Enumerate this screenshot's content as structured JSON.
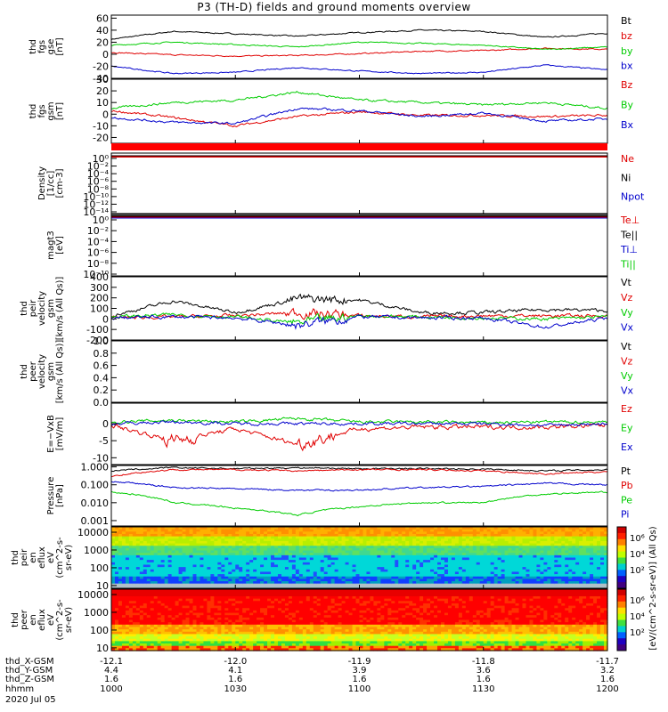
{
  "title": "P3 (TH-D) fields and ground moments overview",
  "colors": {
    "black": "#000000",
    "red": "#e00000",
    "green": "#00cc00",
    "blue": "#0000cc"
  },
  "chart_data": [
    {
      "type": "line",
      "id": "p1",
      "ylabel": [
        "thd",
        "fgs",
        "gse",
        "[nT]"
      ],
      "ylim": [
        -40,
        65
      ],
      "yticks": [
        -40,
        -20,
        0,
        20,
        40,
        60
      ],
      "series": [
        {
          "name": "Bt",
          "color": "black",
          "x": [
            10.0,
            10.25,
            10.5,
            10.75,
            11.0,
            11.25,
            11.5,
            11.75,
            12.0
          ],
          "y": [
            25,
            38,
            34,
            30,
            36,
            40,
            38,
            28,
            35
          ]
        },
        {
          "name": "bz",
          "color": "red",
          "x": [
            10.0,
            10.25,
            10.5,
            10.75,
            11.0,
            11.25,
            11.5,
            11.75,
            12.0
          ],
          "y": [
            3,
            -1,
            -3,
            -2,
            1,
            5,
            6,
            10,
            8
          ]
        },
        {
          "name": "by",
          "color": "green",
          "x": [
            10.0,
            10.25,
            10.5,
            10.75,
            11.0,
            11.25,
            11.5,
            11.75,
            12.0
          ],
          "y": [
            15,
            20,
            16,
            12,
            20,
            18,
            15,
            8,
            12
          ]
        },
        {
          "name": "bx",
          "color": "blue",
          "x": [
            10.0,
            10.25,
            10.5,
            10.75,
            11.0,
            11.25,
            11.5,
            11.75,
            12.0
          ],
          "y": [
            -20,
            -32,
            -30,
            -22,
            -28,
            -32,
            -30,
            -18,
            -26
          ]
        }
      ]
    },
    {
      "type": "line",
      "id": "p2",
      "ylabel": [
        "thd",
        "fgs",
        "gsm",
        "[nT]"
      ],
      "ylim": [
        -25,
        30
      ],
      "yticks": [
        -20,
        -10,
        0,
        10,
        20,
        30
      ],
      "series": [
        {
          "name": "Bz",
          "color": "red",
          "x": [
            10.0,
            10.25,
            10.5,
            10.75,
            11.0,
            11.25,
            11.5,
            11.75,
            12.0
          ],
          "y": [
            3,
            -3,
            -10,
            -2,
            2,
            -1,
            -1,
            -2,
            -1
          ]
        },
        {
          "name": "By",
          "color": "green",
          "x": [
            10.0,
            10.25,
            10.5,
            10.75,
            11.0,
            11.25,
            11.5,
            11.75,
            12.0
          ],
          "y": [
            5,
            10,
            12,
            19,
            12,
            10,
            8,
            10,
            5
          ]
        },
        {
          "name": "Bx",
          "color": "blue",
          "x": [
            10.0,
            10.25,
            10.5,
            10.75,
            11.0,
            11.25,
            11.5,
            11.75,
            12.0
          ],
          "y": [
            -3,
            -7,
            -8,
            5,
            3,
            -2,
            1,
            -6,
            -4
          ]
        }
      ]
    },
    {
      "type": "line",
      "id": "p3",
      "ylabel": [
        "Density",
        "[1/cc]",
        "[cm-3]"
      ],
      "yticks_text": [
        "10⁰",
        "10⁻²",
        "10⁻⁴",
        "10⁻⁶",
        "10⁻⁸",
        "10⁻¹⁰",
        "10⁻¹²",
        "10⁻¹⁴"
      ],
      "legend": [
        {
          "name": "Ne",
          "color": "red"
        },
        {
          "name": "Ni",
          "color": "black"
        },
        {
          "name": "Npot",
          "color": "blue"
        }
      ]
    },
    {
      "type": "line",
      "id": "p4",
      "ylabel": [
        "magt3",
        "[eV]"
      ],
      "yticks_text": [
        "10⁰",
        "10⁻²",
        "10⁻⁴",
        "10⁻⁶",
        "10⁻⁸",
        "10⁻¹⁰"
      ],
      "legend": [
        {
          "name": "Te⊥",
          "color": "red"
        },
        {
          "name": "Te||",
          "color": "black"
        },
        {
          "name": "Ti⊥",
          "color": "blue"
        },
        {
          "name": "Ti||",
          "color": "green"
        }
      ]
    },
    {
      "type": "line",
      "id": "p5",
      "ylabel": [
        "thd",
        "peir",
        "velocity",
        "gsm",
        "[km/s (All Qs)]"
      ],
      "ylim": [
        -200,
        400
      ],
      "yticks": [
        -200,
        -100,
        0,
        100,
        200,
        300,
        400
      ],
      "series": [
        {
          "name": "Vt",
          "color": "black",
          "x": [
            10.0,
            10.25,
            10.5,
            10.75,
            11.0,
            11.25,
            11.5,
            11.75,
            12.0
          ],
          "y": [
            30,
            170,
            60,
            190,
            180,
            60,
            60,
            90,
            80
          ]
        },
        {
          "name": "Vz",
          "color": "red",
          "x": [
            10.0,
            10.25,
            10.5,
            10.75,
            11.0,
            11.25,
            11.5,
            11.75,
            12.0
          ],
          "y": [
            10,
            20,
            30,
            60,
            30,
            20,
            30,
            30,
            30
          ]
        },
        {
          "name": "Vy",
          "color": "green",
          "x": [
            10.0,
            10.25,
            10.5,
            10.75,
            11.0,
            11.25,
            11.5,
            11.75,
            12.0
          ],
          "y": [
            20,
            40,
            20,
            -40,
            30,
            20,
            10,
            0,
            20
          ]
        },
        {
          "name": "Vx",
          "color": "blue",
          "x": [
            10.0,
            10.25,
            10.5,
            10.75,
            11.0,
            11.25,
            11.5,
            11.75,
            12.0
          ],
          "y": [
            10,
            20,
            10,
            -60,
            20,
            10,
            10,
            -80,
            10
          ]
        }
      ]
    },
    {
      "type": "line",
      "id": "p6",
      "ylabel": [
        "thd",
        "peer",
        "velocity",
        "gsm",
        "[km/s (All Qs)]"
      ],
      "ylim": [
        0,
        1.0
      ],
      "yticks": [
        0.0,
        0.2,
        0.4,
        0.6,
        0.8,
        1.0
      ],
      "legend": [
        {
          "name": "Vt",
          "color": "black"
        },
        {
          "name": "Vz",
          "color": "red"
        },
        {
          "name": "Vy",
          "color": "green"
        },
        {
          "name": "Vx",
          "color": "blue"
        }
      ]
    },
    {
      "type": "line",
      "id": "p7",
      "ylabel": [
        "E=−VxB",
        "[mV/m]"
      ],
      "ylim": [
        -12,
        6
      ],
      "yticks": [
        -10,
        -5,
        0
      ],
      "series": [
        {
          "name": "Ez",
          "color": "red",
          "x": [
            10.0,
            10.25,
            10.5,
            10.75,
            11.0,
            11.25,
            11.5,
            11.75,
            12.0
          ],
          "y": [
            -0.5,
            -5,
            -1.5,
            -6,
            -1.5,
            -1,
            -1,
            -1,
            -0.5
          ]
        },
        {
          "name": "Ey",
          "color": "green",
          "x": [
            10.0,
            10.25,
            10.5,
            10.75,
            11.0,
            11.25,
            11.5,
            11.75,
            12.0
          ],
          "y": [
            0.5,
            1,
            0.5,
            1.5,
            0.5,
            0.5,
            0.3,
            0.5,
            0.5
          ]
        },
        {
          "name": "Ex",
          "color": "blue",
          "x": [
            10.0,
            10.25,
            10.5,
            10.75,
            11.0,
            11.25,
            11.5,
            11.75,
            12.0
          ],
          "y": [
            0,
            0.5,
            0,
            0,
            0,
            0,
            0,
            -0.5,
            0
          ]
        }
      ]
    },
    {
      "type": "line",
      "id": "p8",
      "ylabel": [
        "Pressure",
        "[nPa]"
      ],
      "ylim": [
        0.0005,
        1.2
      ],
      "log": true,
      "yticks_text": [
        "1.000",
        "0.100",
        "0.010",
        "0.001"
      ],
      "yticks": [
        1.0,
        0.1,
        0.01,
        0.001
      ],
      "series": [
        {
          "name": "Pt",
          "color": "black",
          "x": [
            10.0,
            10.25,
            10.5,
            10.75,
            11.0,
            11.25,
            11.5,
            11.75,
            12.0
          ],
          "y": [
            0.6,
            0.9,
            0.8,
            0.9,
            0.8,
            0.8,
            0.75,
            0.6,
            0.7
          ]
        },
        {
          "name": "Pb",
          "color": "red",
          "x": [
            10.0,
            10.25,
            10.5,
            10.75,
            11.0,
            11.25,
            11.5,
            11.75,
            12.0
          ],
          "y": [
            0.3,
            0.7,
            0.7,
            0.6,
            0.7,
            0.7,
            0.6,
            0.4,
            0.55
          ]
        },
        {
          "name": "Pe",
          "color": "green",
          "x": [
            10.0,
            10.25,
            10.5,
            10.75,
            11.0,
            11.25,
            11.5,
            11.75,
            12.0
          ],
          "y": [
            0.04,
            0.01,
            0.005,
            0.002,
            0.006,
            0.01,
            0.01,
            0.03,
            0.04
          ]
        },
        {
          "name": "Pi",
          "color": "blue",
          "x": [
            10.0,
            10.25,
            10.5,
            10.75,
            11.0,
            11.25,
            11.5,
            11.75,
            12.0
          ],
          "y": [
            0.15,
            0.07,
            0.06,
            0.05,
            0.05,
            0.07,
            0.08,
            0.12,
            0.1
          ]
        }
      ]
    },
    {
      "type": "heatmap",
      "id": "p9",
      "ylabel": [
        "thd",
        "peir",
        "en",
        "eflux",
        "eV",
        "(cm^2-s-",
        "sr-eV)"
      ],
      "ylim": [
        7,
        20000
      ],
      "log": true,
      "yticks_text": [
        "10000",
        "1000",
        "100",
        "10"
      ],
      "yticks": [
        10000,
        1000,
        100,
        10
      ]
    },
    {
      "type": "heatmap",
      "id": "p10",
      "ylabel": [
        "thd",
        "peer",
        "en",
        "eflux",
        "eV",
        "(cm^2-s-",
        "sr-eV)"
      ],
      "ylim": [
        7,
        20000
      ],
      "log": true,
      "yticks_text": [
        "10000",
        "1000",
        "100",
        "10"
      ],
      "yticks": [
        10000,
        1000,
        100,
        10
      ]
    }
  ],
  "colorbar": {
    "label": "[eV/(cm^2-s-sr-eV)] (All Qs)",
    "p9_ticks": [
      "10⁶",
      "10⁴",
      "10²"
    ],
    "p10_ticks": [
      "10⁶",
      "10⁴",
      "10²"
    ]
  },
  "orbit": {
    "rows": [
      {
        "label": "thd_X-GSM",
        "values": [
          "-12.1",
          "-12.0",
          "-11.9",
          "-11.8",
          "-11.7"
        ]
      },
      {
        "label": "thd_Y-GSM",
        "values": [
          "4.4",
          "4.1",
          "3.9",
          "3.6",
          "3.2"
        ]
      },
      {
        "label": "thd_Z-GSM",
        "values": [
          "1.6",
          "1.6",
          "1.6",
          "1.6",
          "1.6"
        ]
      },
      {
        "label": "hhmm",
        "values": [
          "1000",
          "1030",
          "1100",
          "1130",
          "1200"
        ]
      }
    ],
    "date": "2020 Jul 05"
  }
}
